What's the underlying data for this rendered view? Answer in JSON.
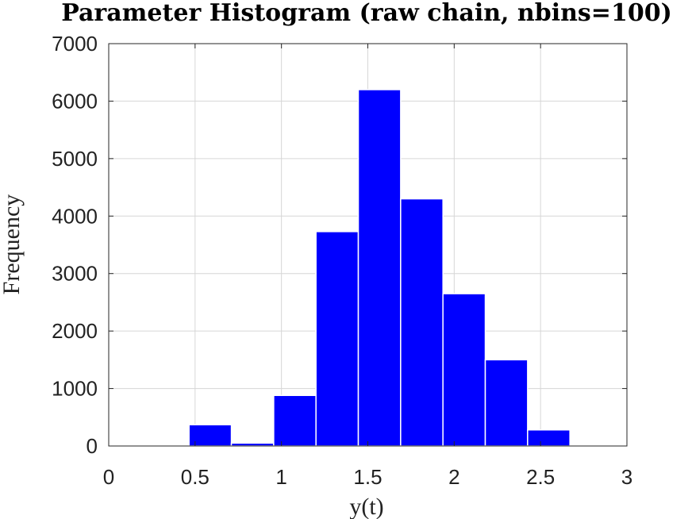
{
  "chart_data": {
    "type": "bar",
    "title": "Parameter Histogram (raw chain, nbins=100)",
    "xlabel": "y(t)",
    "ylabel": "Frequency",
    "xlim": [
      0,
      3
    ],
    "ylim": [
      0,
      7000
    ],
    "xticks": [
      0,
      0.5,
      1,
      1.5,
      2,
      2.5,
      3
    ],
    "xtick_labels": [
      "0",
      "0.5",
      "1",
      "1.5",
      "2",
      "2.5",
      "3"
    ],
    "yticks": [
      0,
      1000,
      2000,
      3000,
      4000,
      5000,
      6000,
      7000
    ],
    "ytick_labels": [
      "0",
      "1000",
      "2000",
      "3000",
      "4000",
      "5000",
      "6000",
      "7000"
    ],
    "grid": true,
    "bar_color": "#0000ff",
    "bins": [
      {
        "x0": 0.465,
        "x1": 0.71,
        "value": 370
      },
      {
        "x0": 0.71,
        "x1": 0.955,
        "value": 50
      },
      {
        "x0": 0.955,
        "x1": 1.2,
        "value": 880
      },
      {
        "x0": 1.2,
        "x1": 1.445,
        "value": 3730
      },
      {
        "x0": 1.445,
        "x1": 1.69,
        "value": 6200
      },
      {
        "x0": 1.69,
        "x1": 1.935,
        "value": 4300
      },
      {
        "x0": 1.935,
        "x1": 2.18,
        "value": 2650
      },
      {
        "x0": 2.18,
        "x1": 2.425,
        "value": 1500
      },
      {
        "x0": 2.425,
        "x1": 2.67,
        "value": 280
      }
    ]
  }
}
